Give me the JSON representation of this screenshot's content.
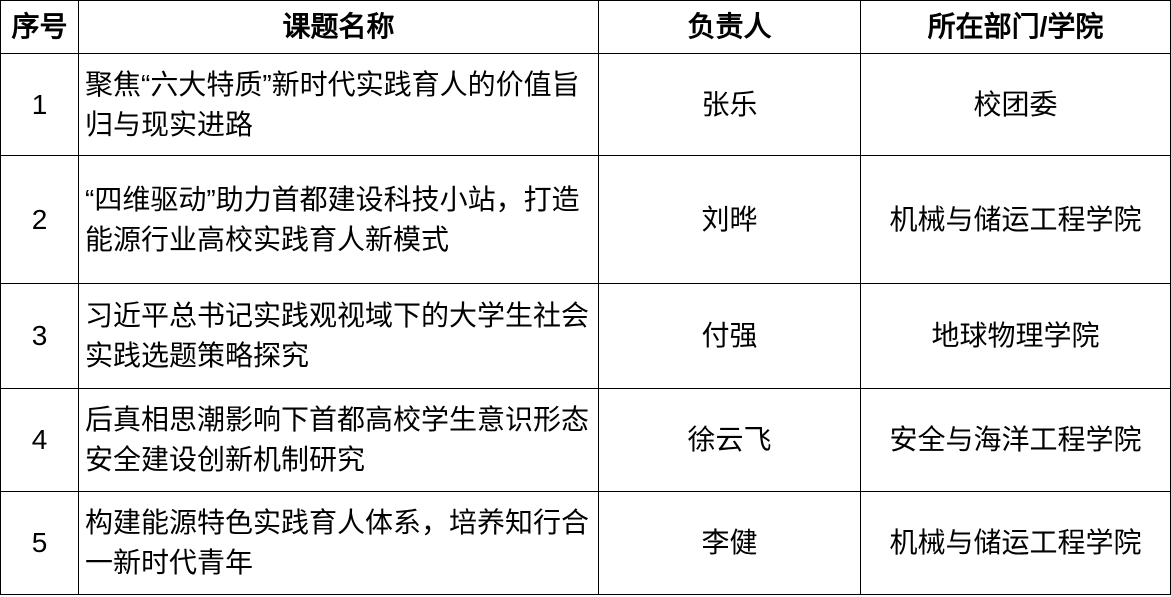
{
  "headers": [
    "序号",
    "课题名称",
    "负责人",
    "所在部门/学院"
  ],
  "rows": [
    {
      "no": "1",
      "title": "聚焦“六大特质”新时代实践育人的价值旨归与现实进路",
      "leader": "张乐",
      "dept": "校团委"
    },
    {
      "no": "2",
      "title": "“四维驱动”助力首都建设科技小站，打造能源行业高校实践育人新模式",
      "leader": "刘晔",
      "dept": "机械与储运工程学院"
    },
    {
      "no": "3",
      "title": "习近平总书记实践观视域下的大学生社会实践选题策略探究",
      "leader": "付强",
      "dept": "地球物理学院"
    },
    {
      "no": "4",
      "title": "后真相思潮影响下首都高校学生意识形态安全建设创新机制研究",
      "leader": "徐云飞",
      "dept": "安全与海洋工程学院"
    },
    {
      "no": "5",
      "title": "构建能源特色实践育人体系，培养知行合一新时代青年",
      "leader": "李健",
      "dept": "机械与储运工程学院"
    }
  ]
}
